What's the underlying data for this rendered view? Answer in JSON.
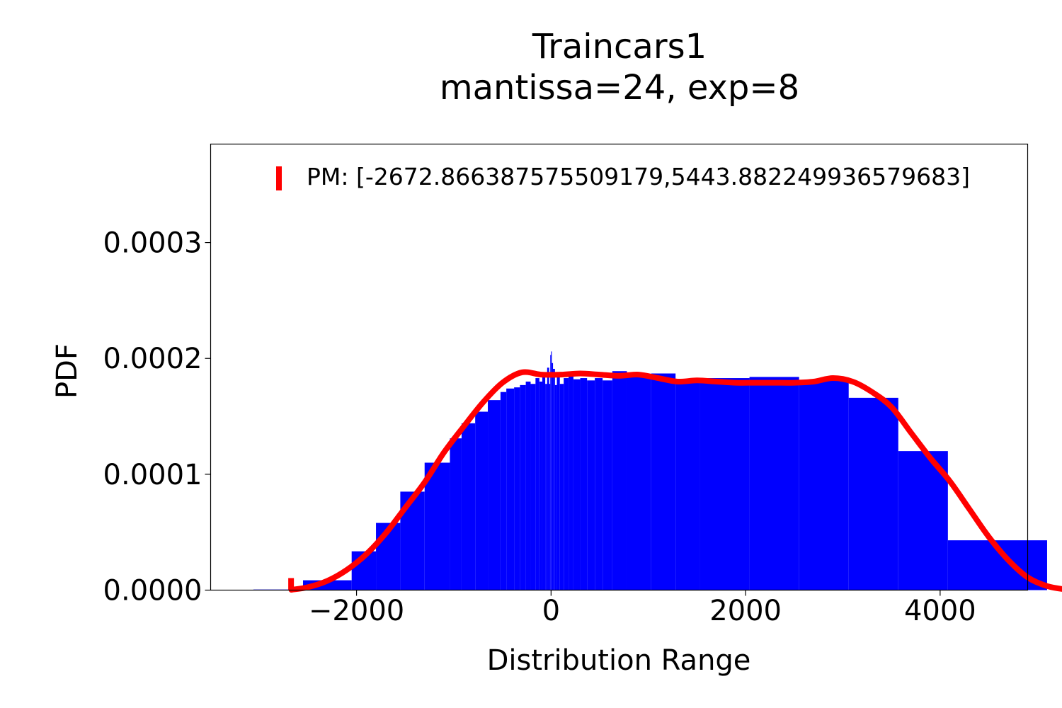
{
  "chart_data": {
    "type": "bar",
    "title": "Traincars1",
    "subtitle": "mantissa=24, exp=8",
    "xlabel": "Distribution Range",
    "ylabel": "PDF",
    "xlim": [
      -3500,
      4900
    ],
    "ylim": [
      0,
      0.000385
    ],
    "xticks": [
      {
        "value": -2000,
        "label": "−2000"
      },
      {
        "value": 0,
        "label": "0"
      },
      {
        "value": 2000,
        "label": "2000"
      },
      {
        "value": 4000,
        "label": "4000"
      }
    ],
    "yticks": [
      {
        "value": 0,
        "label": "0.0000"
      },
      {
        "value": 0.0001,
        "label": "0.0001"
      },
      {
        "value": 0.0002,
        "label": "0.0002"
      },
      {
        "value": 0.0003,
        "label": "0.0003"
      }
    ],
    "legend": {
      "placement": "top-right",
      "label": "PM: [-2672.866387575509179,5443.882249936579683]"
    },
    "colors": {
      "histogram": "#0000ff",
      "kde": "#ff0000",
      "markers": "#ff0000"
    },
    "histogram_bins": [
      {
        "x0": -3060,
        "x1": -2550,
        "y": 5e-07
      },
      {
        "x0": -2550,
        "x1": -2050,
        "y": 8.5e-06
      },
      {
        "x0": -2050,
        "x1": -1800,
        "y": 3.35e-05
      },
      {
        "x0": -1800,
        "x1": -1550,
        "y": 5.8e-05
      },
      {
        "x0": -1550,
        "x1": -1300,
        "y": 8.5e-05
      },
      {
        "x0": -1300,
        "x1": -1040,
        "y": 0.00011
      },
      {
        "x0": -1040,
        "x1": -920,
        "y": 0.000131
      },
      {
        "x0": -920,
        "x1": -780,
        "y": 0.000144
      },
      {
        "x0": -780,
        "x1": -650,
        "y": 0.000154
      },
      {
        "x0": -650,
        "x1": -520,
        "y": 0.000164
      },
      {
        "x0": -520,
        "x1": -460,
        "y": 0.000171
      },
      {
        "x0": -460,
        "x1": -380,
        "y": 0.000174
      },
      {
        "x0": -380,
        "x1": -320,
        "y": 0.000175
      },
      {
        "x0": -320,
        "x1": -260,
        "y": 0.000177
      },
      {
        "x0": -260,
        "x1": -210,
        "y": 0.00018
      },
      {
        "x0": -210,
        "x1": -160,
        "y": 0.000178
      },
      {
        "x0": -160,
        "x1": -120,
        "y": 0.000183
      },
      {
        "x0": -120,
        "x1": -90,
        "y": 0.00018
      },
      {
        "x0": -90,
        "x1": -60,
        "y": 0.000186
      },
      {
        "x0": -60,
        "x1": -40,
        "y": 0.000178
      },
      {
        "x0": -40,
        "x1": -20,
        "y": 0.000192
      },
      {
        "x0": -20,
        "x1": -8,
        "y": 0.000178
      },
      {
        "x0": -8,
        "x1": 0,
        "y": 0.000203
      },
      {
        "x0": 0,
        "x1": 8,
        "y": 0.000206
      },
      {
        "x0": 8,
        "x1": 20,
        "y": 0.000196
      },
      {
        "x0": 20,
        "x1": 40,
        "y": 0.000191
      },
      {
        "x0": 40,
        "x1": 60,
        "y": 0.000177
      },
      {
        "x0": 60,
        "x1": 90,
        "y": 0.000186
      },
      {
        "x0": 90,
        "x1": 130,
        "y": 0.000178
      },
      {
        "x0": 130,
        "x1": 180,
        "y": 0.000183
      },
      {
        "x0": 180,
        "x1": 230,
        "y": 0.000186
      },
      {
        "x0": 230,
        "x1": 300,
        "y": 0.000182
      },
      {
        "x0": 300,
        "x1": 370,
        "y": 0.000183
      },
      {
        "x0": 370,
        "x1": 450,
        "y": 0.000181
      },
      {
        "x0": 450,
        "x1": 530,
        "y": 0.000183
      },
      {
        "x0": 530,
        "x1": 630,
        "y": 0.000181
      },
      {
        "x0": 630,
        "x1": 780,
        "y": 0.000189
      },
      {
        "x0": 780,
        "x1": 1030,
        "y": 0.000185
      },
      {
        "x0": 1030,
        "x1": 1280,
        "y": 0.000187
      },
      {
        "x0": 1280,
        "x1": 1530,
        "y": 0.00018
      },
      {
        "x0": 1530,
        "x1": 2040,
        "y": 0.000183
      },
      {
        "x0": 2040,
        "x1": 2550,
        "y": 0.000184
      },
      {
        "x0": 2550,
        "x1": 3060,
        "y": 0.000181
      },
      {
        "x0": 3060,
        "x1": 3570,
        "y": 0.000166
      },
      {
        "x0": 3570,
        "x1": 4080,
        "y": 0.00012
      },
      {
        "x0": 4080,
        "x1": 5100,
        "y": 4.3e-05
      }
    ],
    "kde": {
      "x": [
        -2670,
        -2500,
        -2300,
        -2100,
        -1900,
        -1700,
        -1500,
        -1300,
        -1100,
        -900,
        -700,
        -500,
        -300,
        -100,
        100,
        300,
        500,
        700,
        900,
        1100,
        1300,
        1500,
        1700,
        1900,
        2100,
        2300,
        2500,
        2700,
        2900,
        3100,
        3300,
        3500,
        3700,
        3900,
        4100,
        4300,
        4500,
        4700,
        4900,
        5100,
        5300,
        5440
      ],
      "y": [
        3e-07,
        2.5e-06,
        8e-06,
        1.75e-05,
        3.1e-05,
        4.9e-05,
        7.1e-05,
        9.3e-05,
        0.000119,
        0.000141,
        0.000162,
        0.000179,
        0.000188,
        0.000186,
        0.000186,
        0.000187,
        0.000186,
        0.000185,
        0.000186,
        0.000183,
        0.00018,
        0.000181,
        0.00018,
        0.000179,
        0.000179,
        0.000179,
        0.000179,
        0.00018,
        0.000183,
        0.00018,
        0.000171,
        0.000158,
        0.000136,
        0.000114,
        9.4e-05,
        7e-05,
        4.6e-05,
        2.6e-05,
        1.1e-05,
        3.5e-06,
        5e-07,
        0.0
      ]
    },
    "pm_interval": [
      -2672.866387575509,
      5443.88224993658
    ]
  }
}
